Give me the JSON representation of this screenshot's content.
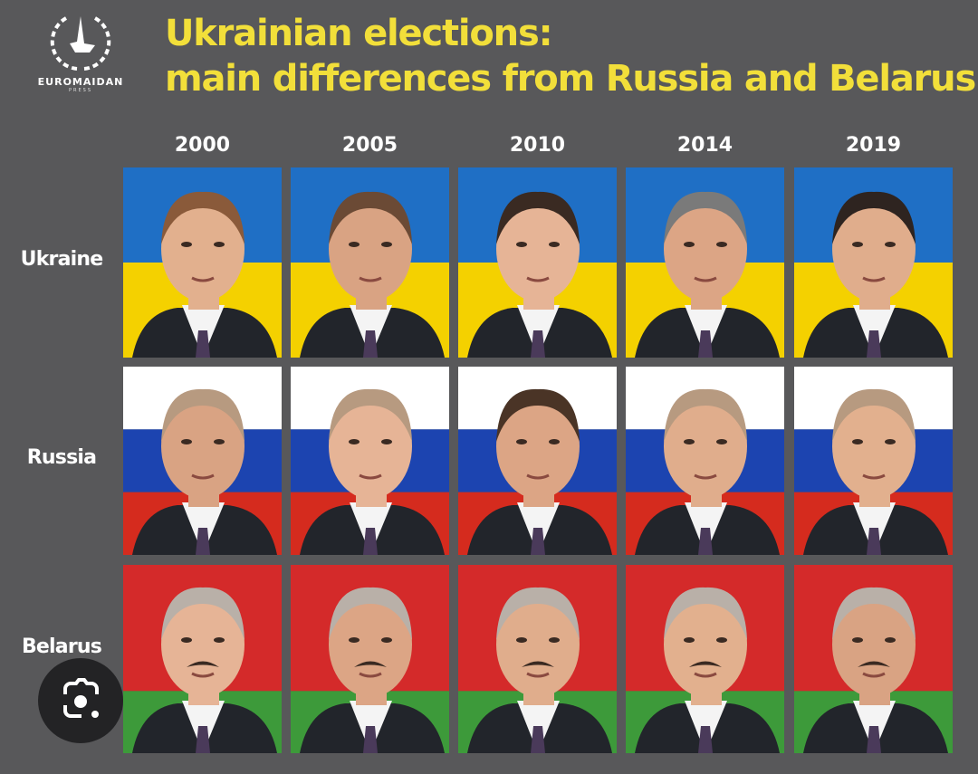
{
  "logo": {
    "name": "EUROMAIDAN",
    "sub": "PRESS"
  },
  "title": {
    "line1": "Ukrainian elections:",
    "line2": "main differences from Russia and Belarus"
  },
  "years": [
    "2000",
    "2005",
    "2010",
    "2014",
    "2019"
  ],
  "countries": [
    {
      "label": "Ukraine",
      "flag": [
        "#1f6fc5",
        "#f4d100"
      ]
    },
    {
      "label": "Russia",
      "flag": [
        "#ffffff",
        "#1c44b0",
        "#d52b1e"
      ]
    },
    {
      "label": "Belarus",
      "flag": [
        "#d42a2a",
        "#3d9a3a"
      ]
    }
  ],
  "colors": {
    "background": "#58585a",
    "title": "#f2df3a"
  },
  "overlay": {
    "icon": "google-lens-icon"
  }
}
